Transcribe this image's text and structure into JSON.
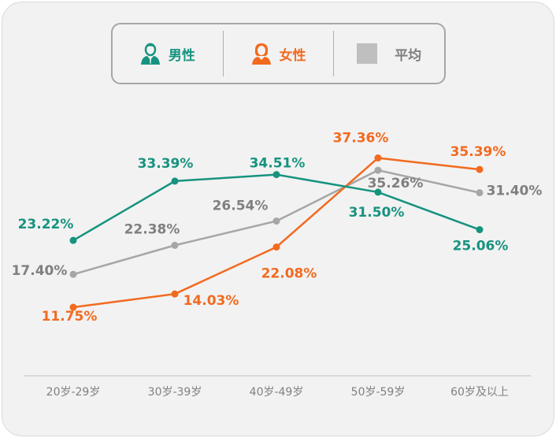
{
  "chart_data": {
    "type": "line",
    "title": "",
    "xlabel": "",
    "ylabel": "",
    "categories": [
      "20岁-29岁",
      "30岁-39岁",
      "40岁-49岁",
      "50岁-59岁",
      "60岁及以上"
    ],
    "ylim": [
      0,
      40
    ],
    "grid": false,
    "legend_position": "top-center",
    "series": [
      {
        "name": "男性",
        "color": "#16937f",
        "icon": "male-person-icon",
        "values": [
          23.22,
          33.39,
          34.51,
          31.5,
          25.06
        ],
        "labels": [
          "23.22%",
          "33.39%",
          "34.51%",
          "31.50%",
          "25.06%"
        ]
      },
      {
        "name": "女性",
        "color": "#f26a1f",
        "icon": "female-person-icon",
        "values": [
          11.75,
          14.03,
          22.08,
          37.36,
          35.39
        ],
        "labels": [
          "11.75%",
          "14.03%",
          "22.08%",
          "37.36%",
          "35.39%"
        ]
      },
      {
        "name": "平均",
        "color": "#a6a6a6",
        "label_color": "#7f7f7f",
        "icon": "gray-square-icon",
        "values": [
          17.4,
          22.38,
          26.54,
          35.26,
          31.4
        ],
        "labels": [
          "17.40%",
          "22.38%",
          "26.54%",
          "35.26%",
          "31.40%"
        ]
      }
    ]
  }
}
